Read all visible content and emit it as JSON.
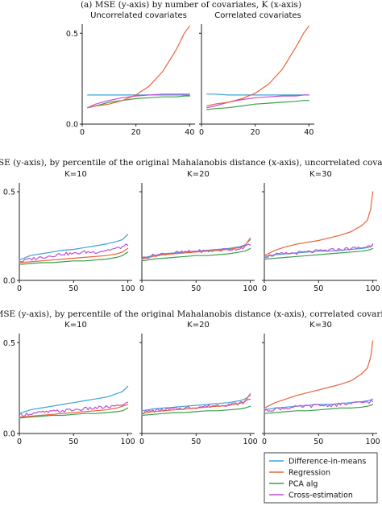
{
  "figure": {
    "caption_a": "(a) MSE (y-axis) by number of covariates, K (x-axis)",
    "caption_b": "(b) MSE (y-axis), by percentile of the original Mahalanobis distance (x-axis), uncorrelated covariates",
    "caption_c": "(c) MSE (y-axis), by percentile of the original Mahalanobis distance (x-axis), correlated covariates"
  },
  "colors": {
    "Difference-in-means": "#3ba3d8",
    "Regression": "#e8643a",
    "PCA alg": "#3aa04a",
    "Cross-estimation": "#c14fd8"
  },
  "legend": {
    "placement": "bottom-right",
    "items": [
      "Difference-in-means",
      "Regression",
      "PCA alg",
      "Cross-estimation"
    ]
  },
  "chart_data": [
    {
      "id": "a1",
      "type": "line",
      "title": "Uncorrelated covariates",
      "xlim": [
        0,
        42
      ],
      "ylim": [
        0,
        0.55
      ],
      "xticks": [
        0,
        20,
        40
      ],
      "yticks": [
        0.0,
        0.5
      ],
      "ytick_labels": [
        "0.0",
        "0.5"
      ],
      "x": [
        2,
        5,
        10,
        15,
        20,
        25,
        30,
        35,
        38,
        40
      ],
      "series": [
        {
          "name": "Difference-in-means",
          "values": [
            0.16,
            0.16,
            0.16,
            0.16,
            0.16,
            0.16,
            0.16,
            0.16,
            0.16,
            0.16
          ]
        },
        {
          "name": "Regression",
          "values": [
            0.09,
            0.1,
            0.11,
            0.13,
            0.16,
            0.21,
            0.29,
            0.41,
            0.5,
            0.54
          ]
        },
        {
          "name": "PCA alg",
          "values": [
            0.09,
            0.1,
            0.12,
            0.13,
            0.14,
            0.145,
            0.15,
            0.15,
            0.155,
            0.155
          ]
        },
        {
          "name": "Cross-estimation",
          "values": [
            0.09,
            0.11,
            0.13,
            0.145,
            0.155,
            0.16,
            0.165,
            0.165,
            0.165,
            0.165
          ]
        }
      ]
    },
    {
      "id": "a2",
      "type": "line",
      "title": "Correlated covariates",
      "xlim": [
        0,
        42
      ],
      "ylim": [
        0,
        0.55
      ],
      "xticks": [
        0,
        20,
        40
      ],
      "yticks": [
        0.0,
        0.5
      ],
      "ytick_labels": [
        "",
        ""
      ],
      "x": [
        2,
        5,
        10,
        15,
        20,
        25,
        30,
        35,
        38,
        40
      ],
      "series": [
        {
          "name": "Difference-in-means",
          "values": [
            0.165,
            0.165,
            0.16,
            0.16,
            0.16,
            0.16,
            0.16,
            0.16,
            0.16,
            0.16
          ]
        },
        {
          "name": "Regression",
          "values": [
            0.1,
            0.11,
            0.12,
            0.14,
            0.17,
            0.22,
            0.3,
            0.42,
            0.5,
            0.54
          ]
        },
        {
          "name": "PCA alg",
          "values": [
            0.08,
            0.085,
            0.09,
            0.1,
            0.11,
            0.115,
            0.12,
            0.125,
            0.13,
            0.13
          ]
        },
        {
          "name": "Cross-estimation",
          "values": [
            0.09,
            0.1,
            0.12,
            0.135,
            0.145,
            0.15,
            0.155,
            0.155,
            0.16,
            0.16
          ]
        }
      ]
    },
    {
      "id": "b1",
      "type": "line",
      "title": "K=10",
      "xlim": [
        0,
        104
      ],
      "ylim": [
        0,
        0.55
      ],
      "xticks": [
        0,
        50,
        100
      ],
      "yticks": [
        0.0,
        0.5
      ],
      "ytick_labels": [
        "0.0",
        "0.5"
      ],
      "x": [
        0,
        10,
        20,
        30,
        40,
        50,
        60,
        70,
        80,
        90,
        95,
        100
      ],
      "series": [
        {
          "name": "Difference-in-means",
          "values": [
            0.115,
            0.14,
            0.15,
            0.16,
            0.17,
            0.175,
            0.185,
            0.195,
            0.205,
            0.22,
            0.23,
            0.26
          ]
        },
        {
          "name": "Regression",
          "values": [
            0.1,
            0.105,
            0.11,
            0.115,
            0.12,
            0.125,
            0.13,
            0.135,
            0.14,
            0.15,
            0.16,
            0.18
          ]
        },
        {
          "name": "PCA alg",
          "values": [
            0.09,
            0.095,
            0.1,
            0.1,
            0.105,
            0.11,
            0.11,
            0.115,
            0.12,
            0.13,
            0.14,
            0.16
          ]
        },
        {
          "name": "Cross-estimation",
          "values": [
            0.105,
            0.12,
            0.13,
            0.14,
            0.15,
            0.15,
            0.16,
            0.16,
            0.17,
            0.18,
            0.19,
            0.2
          ]
        }
      ]
    },
    {
      "id": "b2",
      "type": "line",
      "title": "K=20",
      "xlim": [
        0,
        104
      ],
      "ylim": [
        0,
        0.55
      ],
      "xticks": [
        0,
        50,
        100
      ],
      "yticks": [
        0.0,
        0.5
      ],
      "ytick_labels": [
        "",
        ""
      ],
      "x": [
        0,
        10,
        20,
        30,
        40,
        50,
        60,
        70,
        80,
        90,
        95,
        100
      ],
      "series": [
        {
          "name": "Difference-in-means",
          "values": [
            0.125,
            0.14,
            0.15,
            0.155,
            0.16,
            0.165,
            0.17,
            0.175,
            0.18,
            0.19,
            0.2,
            0.23
          ]
        },
        {
          "name": "Regression",
          "values": [
            0.12,
            0.135,
            0.145,
            0.15,
            0.155,
            0.16,
            0.165,
            0.17,
            0.175,
            0.185,
            0.195,
            0.24
          ]
        },
        {
          "name": "PCA alg",
          "values": [
            0.11,
            0.12,
            0.125,
            0.13,
            0.135,
            0.14,
            0.14,
            0.145,
            0.15,
            0.16,
            0.165,
            0.18
          ]
        },
        {
          "name": "Cross-estimation",
          "values": [
            0.125,
            0.14,
            0.15,
            0.155,
            0.16,
            0.165,
            0.165,
            0.17,
            0.175,
            0.18,
            0.19,
            0.2
          ]
        }
      ]
    },
    {
      "id": "b3",
      "type": "line",
      "title": "K=30",
      "xlim": [
        0,
        104
      ],
      "ylim": [
        0,
        0.55
      ],
      "xticks": [
        0,
        50,
        100
      ],
      "yticks": [
        0.0,
        0.5
      ],
      "ytick_labels": [
        "",
        ""
      ],
      "x": [
        0,
        10,
        20,
        30,
        40,
        50,
        60,
        70,
        80,
        90,
        95,
        98,
        100
      ],
      "series": [
        {
          "name": "Difference-in-means",
          "values": [
            0.135,
            0.145,
            0.15,
            0.155,
            0.16,
            0.165,
            0.165,
            0.17,
            0.175,
            0.18,
            0.185,
            0.19,
            0.2
          ]
        },
        {
          "name": "Regression",
          "values": [
            0.14,
            0.17,
            0.19,
            0.205,
            0.215,
            0.225,
            0.24,
            0.255,
            0.275,
            0.31,
            0.34,
            0.4,
            0.5
          ]
        },
        {
          "name": "PCA alg",
          "values": [
            0.12,
            0.125,
            0.13,
            0.135,
            0.14,
            0.145,
            0.15,
            0.155,
            0.16,
            0.165,
            0.17,
            0.175,
            0.18
          ]
        },
        {
          "name": "Cross-estimation",
          "values": [
            0.135,
            0.145,
            0.15,
            0.155,
            0.16,
            0.165,
            0.17,
            0.175,
            0.18,
            0.185,
            0.19,
            0.195,
            0.21
          ]
        }
      ]
    },
    {
      "id": "c1",
      "type": "line",
      "title": "K=10",
      "xlim": [
        0,
        104
      ],
      "ylim": [
        0,
        0.55
      ],
      "xticks": [
        0,
        50,
        100
      ],
      "yticks": [
        0.0,
        0.5
      ],
      "ytick_labels": [
        "0.0",
        "0.5"
      ],
      "x": [
        0,
        10,
        20,
        30,
        40,
        50,
        60,
        70,
        80,
        90,
        95,
        100
      ],
      "series": [
        {
          "name": "Difference-in-means",
          "values": [
            0.11,
            0.13,
            0.14,
            0.15,
            0.16,
            0.17,
            0.18,
            0.19,
            0.2,
            0.22,
            0.23,
            0.26
          ]
        },
        {
          "name": "Regression",
          "values": [
            0.09,
            0.095,
            0.1,
            0.105,
            0.11,
            0.115,
            0.12,
            0.125,
            0.13,
            0.14,
            0.15,
            0.16
          ]
        },
        {
          "name": "PCA alg",
          "values": [
            0.085,
            0.09,
            0.095,
            0.1,
            0.1,
            0.105,
            0.11,
            0.11,
            0.115,
            0.12,
            0.125,
            0.14
          ]
        },
        {
          "name": "Cross-estimation",
          "values": [
            0.1,
            0.11,
            0.115,
            0.12,
            0.125,
            0.13,
            0.135,
            0.14,
            0.145,
            0.15,
            0.16,
            0.17
          ]
        }
      ]
    },
    {
      "id": "c2",
      "type": "line",
      "title": "K=20",
      "xlim": [
        0,
        104
      ],
      "ylim": [
        0,
        0.55
      ],
      "xticks": [
        0,
        50,
        100
      ],
      "yticks": [
        0.0,
        0.5
      ],
      "ytick_labels": [
        "",
        ""
      ],
      "x": [
        0,
        10,
        20,
        30,
        40,
        50,
        60,
        70,
        80,
        90,
        95,
        100
      ],
      "series": [
        {
          "name": "Difference-in-means",
          "values": [
            0.125,
            0.135,
            0.14,
            0.145,
            0.15,
            0.155,
            0.16,
            0.165,
            0.17,
            0.18,
            0.19,
            0.21
          ]
        },
        {
          "name": "Regression",
          "values": [
            0.11,
            0.12,
            0.125,
            0.13,
            0.135,
            0.14,
            0.145,
            0.15,
            0.155,
            0.165,
            0.175,
            0.22
          ]
        },
        {
          "name": "PCA alg",
          "values": [
            0.1,
            0.105,
            0.11,
            0.115,
            0.115,
            0.12,
            0.125,
            0.125,
            0.13,
            0.135,
            0.14,
            0.15
          ]
        },
        {
          "name": "Cross-estimation",
          "values": [
            0.115,
            0.125,
            0.13,
            0.135,
            0.14,
            0.145,
            0.15,
            0.155,
            0.16,
            0.165,
            0.175,
            0.19
          ]
        }
      ]
    },
    {
      "id": "c3",
      "type": "line",
      "title": "K=30",
      "xlim": [
        0,
        104
      ],
      "ylim": [
        0,
        0.55
      ],
      "xticks": [
        0,
        50,
        100
      ],
      "yticks": [
        0.0,
        0.5
      ],
      "ytick_labels": [
        "",
        ""
      ],
      "x": [
        0,
        10,
        20,
        30,
        40,
        50,
        60,
        70,
        80,
        90,
        95,
        98,
        100
      ],
      "series": [
        {
          "name": "Difference-in-means",
          "values": [
            0.13,
            0.14,
            0.145,
            0.15,
            0.155,
            0.16,
            0.16,
            0.165,
            0.17,
            0.175,
            0.18,
            0.185,
            0.19
          ]
        },
        {
          "name": "Regression",
          "values": [
            0.14,
            0.17,
            0.19,
            0.21,
            0.225,
            0.24,
            0.255,
            0.27,
            0.29,
            0.33,
            0.36,
            0.42,
            0.51
          ]
        },
        {
          "name": "PCA alg",
          "values": [
            0.11,
            0.115,
            0.12,
            0.125,
            0.125,
            0.13,
            0.135,
            0.14,
            0.14,
            0.145,
            0.15,
            0.155,
            0.16
          ]
        },
        {
          "name": "Cross-estimation",
          "values": [
            0.125,
            0.135,
            0.14,
            0.145,
            0.15,
            0.155,
            0.155,
            0.16,
            0.165,
            0.17,
            0.175,
            0.175,
            0.18
          ]
        }
      ]
    }
  ]
}
